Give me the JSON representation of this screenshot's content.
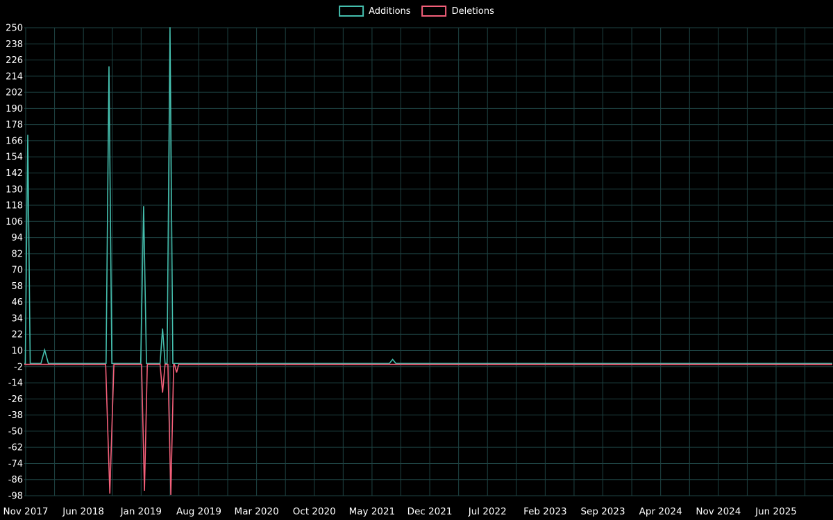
{
  "chart_data": {
    "type": "line",
    "title": "",
    "legend_position": "top-center",
    "background": "#000000",
    "grid_color": "#1e4343",
    "axis_text_color": "#ffffff",
    "x_tick_labels": [
      "Nov 2017",
      "Jun 2018",
      "Jan 2019",
      "Aug 2019",
      "Mar 2020",
      "Oct 2020",
      "May 2021",
      "Dec 2021",
      "Jul 2022",
      "Feb 2023",
      "Sep 2023",
      "Apr 2024",
      "Nov 2024",
      "Jun 2025"
    ],
    "x_tick_interval_months": 7,
    "x_range_months": [
      0,
      94.5
    ],
    "y_min": -98,
    "y_max": 250,
    "y_tick_step": 12,
    "y_tick_labels": [
      250,
      238,
      226,
      214,
      202,
      190,
      178,
      166,
      154,
      142,
      130,
      118,
      106,
      94,
      82,
      70,
      58,
      46,
      34,
      22,
      10,
      -2,
      -14,
      -26,
      -38,
      -50,
      -62,
      -74,
      -86,
      -98
    ],
    "series": [
      {
        "name": "Additions",
        "color": "#45bfae",
        "baseline": 0,
        "spikes": [
          {
            "month": 0.25,
            "value": 170,
            "width": 0.3
          },
          {
            "month": 2.3,
            "value": 10,
            "width": 0.45
          },
          {
            "month": 10.1,
            "value": 221,
            "width": 0.35
          },
          {
            "month": 14.3,
            "value": 117,
            "width": 0.35
          },
          {
            "month": 16.6,
            "value": 26,
            "width": 0.3
          },
          {
            "month": 17.5,
            "value": 250,
            "width": 0.35
          },
          {
            "month": 44.5,
            "value": 3,
            "width": 0.4
          }
        ]
      },
      {
        "name": "Deletions",
        "color": "#f4607a",
        "baseline": 0,
        "spikes": [
          {
            "month": 10.2,
            "value": -96,
            "width": 0.5
          },
          {
            "month": 14.4,
            "value": -94,
            "width": 0.35
          },
          {
            "month": 16.6,
            "value": -21,
            "width": 0.3
          },
          {
            "month": 17.6,
            "value": -97,
            "width": 0.35
          },
          {
            "month": 18.3,
            "value": -6,
            "width": 0.25
          }
        ]
      }
    ]
  }
}
